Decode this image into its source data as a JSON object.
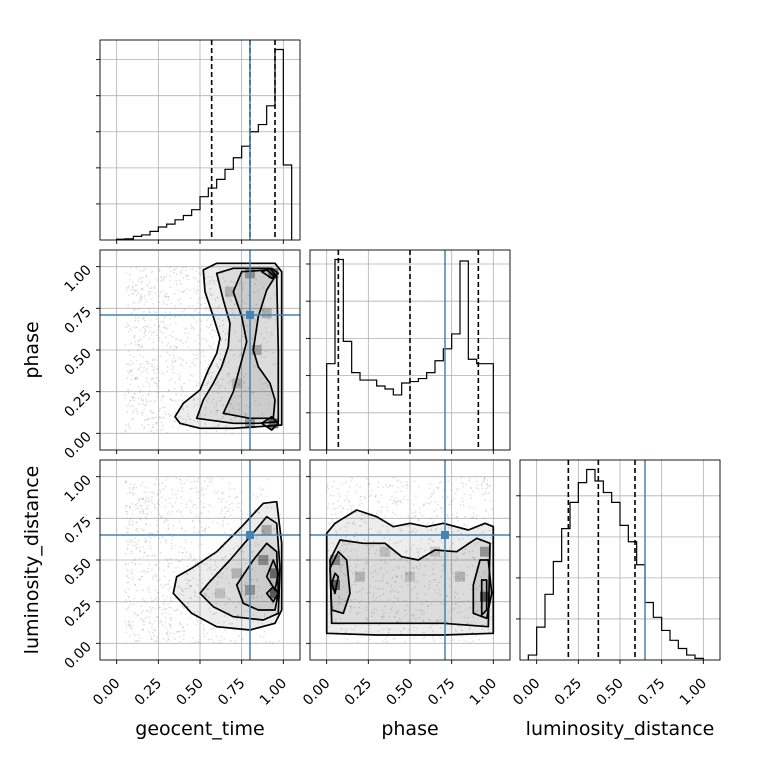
{
  "chart_data": {
    "type": "corner",
    "parameters": [
      "geocent_time",
      "phase",
      "luminosity_distance"
    ],
    "tick_values": [
      0.0,
      0.25,
      0.5,
      0.75,
      1.0
    ],
    "tick_labels": [
      "0.00",
      "0.25",
      "0.50",
      "0.75",
      "1.00"
    ],
    "axis_range": [
      -0.1,
      1.1
    ],
    "grid": true,
    "truth_color": "#4682b4",
    "truths": {
      "geocent_time": 0.8,
      "phase": 0.71,
      "luminosity_distance": 0.65
    },
    "histograms": [
      {
        "parameter": "geocent_time",
        "bin_edges": [
          0.0,
          0.05,
          0.1,
          0.15,
          0.2,
          0.25,
          0.3,
          0.35,
          0.4,
          0.45,
          0.5,
          0.55,
          0.6,
          0.65,
          0.7,
          0.75,
          0.8,
          0.85,
          0.9,
          0.95,
          1.0,
          1.05
        ],
        "counts": [
          0.5,
          0.8,
          2.5,
          3.5,
          6,
          9,
          11,
          14,
          17,
          21,
          30,
          36,
          42,
          49,
          57,
          65,
          75,
          80,
          93,
          132,
          52
        ],
        "quantiles": [
          0.57,
          0.8,
          0.95
        ]
      },
      {
        "parameter": "phase",
        "bin_edges": [
          0.0,
          0.05,
          0.1,
          0.15,
          0.2,
          0.25,
          0.3,
          0.35,
          0.4,
          0.45,
          0.5,
          0.55,
          0.6,
          0.65,
          0.7,
          0.75,
          0.8,
          0.85,
          0.9,
          0.95,
          1.0
        ],
        "counts": [
          58,
          128,
          73,
          52,
          47,
          47,
          43,
          41,
          37,
          45,
          46,
          48,
          52,
          60,
          68,
          78,
          127,
          61,
          58,
          58
        ],
        "quantiles": [
          0.07,
          0.5,
          0.91
        ]
      },
      {
        "parameter": "luminosity_distance",
        "bin_edges": [
          -0.05,
          0.0,
          0.05,
          0.1,
          0.15,
          0.2,
          0.25,
          0.3,
          0.35,
          0.4,
          0.45,
          0.5,
          0.55,
          0.6,
          0.65,
          0.7,
          0.75,
          0.8,
          0.85,
          0.9,
          0.95,
          1.0
        ],
        "counts": [
          3,
          20,
          40,
          60,
          80,
          96,
          108,
          116,
          109,
          102,
          96,
          82,
          72,
          58,
          35,
          26,
          18,
          12,
          7,
          3,
          1
        ],
        "quantiles": [
          0.19,
          0.37,
          0.59
        ]
      }
    ],
    "pairs": [
      {
        "x": "geocent_time",
        "y": "phase",
        "density_cells": [
          [
            0.94,
            0.96,
            0.9
          ],
          [
            0.8,
            0.96,
            0.55
          ],
          [
            0.94,
            0.06,
            0.95
          ],
          [
            0.8,
            0.06,
            0.55
          ],
          [
            0.84,
            0.5,
            0.45
          ],
          [
            0.9,
            0.72,
            0.4
          ],
          [
            0.72,
            0.3,
            0.3
          ],
          [
            0.68,
            0.85,
            0.35
          ]
        ],
        "contours": [
          {
            "level": 0.3,
            "points": [
              [
                0.38,
                0.06
              ],
              [
                0.5,
                0.03
              ],
              [
                0.7,
                0.03
              ],
              [
                0.85,
                0.04
              ],
              [
                0.99,
                0.05
              ],
              [
                0.99,
                0.5
              ],
              [
                0.99,
                0.97
              ],
              [
                0.95,
                1.02
              ],
              [
                0.6,
                1.02
              ],
              [
                0.52,
                0.98
              ],
              [
                0.53,
                0.85
              ],
              [
                0.58,
                0.7
              ],
              [
                0.62,
                0.57
              ],
              [
                0.6,
                0.48
              ],
              [
                0.55,
                0.38
              ],
              [
                0.5,
                0.26
              ],
              [
                0.4,
                0.18
              ],
              [
                0.35,
                0.1
              ]
            ]
          },
          {
            "level": 0.6,
            "points": [
              [
                0.48,
                0.09
              ],
              [
                0.7,
                0.06
              ],
              [
                0.85,
                0.06
              ],
              [
                0.97,
                0.07
              ],
              [
                0.97,
                0.5
              ],
              [
                0.96,
                0.94
              ],
              [
                0.92,
                0.99
              ],
              [
                0.7,
                0.99
              ],
              [
                0.6,
                0.96
              ],
              [
                0.64,
                0.8
              ],
              [
                0.68,
                0.66
              ],
              [
                0.67,
                0.52
              ],
              [
                0.63,
                0.4
              ],
              [
                0.58,
                0.3
              ],
              [
                0.52,
                0.2
              ]
            ]
          },
          {
            "level": 0.85,
            "points": [
              [
                0.64,
                0.12
              ],
              [
                0.8,
                0.09
              ],
              [
                0.94,
                0.09
              ],
              [
                0.95,
                0.2
              ],
              [
                0.92,
                0.3
              ],
              [
                0.85,
                0.4
              ],
              [
                0.82,
                0.5
              ],
              [
                0.85,
                0.7
              ],
              [
                0.9,
                0.86
              ],
              [
                0.95,
                0.94
              ],
              [
                0.9,
                0.98
              ],
              [
                0.75,
                0.97
              ],
              [
                0.7,
                0.85
              ],
              [
                0.75,
                0.7
              ],
              [
                0.78,
                0.55
              ],
              [
                0.74,
                0.4
              ],
              [
                0.7,
                0.25
              ]
            ]
          },
          {
            "level": 0.95,
            "points": [
              [
                0.87,
                0.97
              ],
              [
                0.93,
                0.93
              ],
              [
                0.97,
                0.96
              ],
              [
                0.93,
                0.99
              ]
            ]
          },
          {
            "level": 0.95,
            "points": [
              [
                0.87,
                0.06
              ],
              [
                0.93,
                0.02
              ],
              [
                0.97,
                0.06
              ],
              [
                0.93,
                0.1
              ]
            ]
          }
        ]
      },
      {
        "x": "geocent_time",
        "y": "luminosity_distance",
        "density_cells": [
          [
            0.95,
            0.3,
            0.95
          ],
          [
            0.95,
            0.42,
            0.85
          ],
          [
            0.88,
            0.5,
            0.6
          ],
          [
            0.8,
            0.32,
            0.5
          ],
          [
            0.72,
            0.42,
            0.35
          ],
          [
            0.9,
            0.68,
            0.45
          ],
          [
            0.62,
            0.3,
            0.25
          ]
        ],
        "contours": [
          {
            "level": 0.3,
            "points": [
              [
                0.45,
                0.45
              ],
              [
                0.6,
                0.55
              ],
              [
                0.75,
                0.7
              ],
              [
                0.88,
                0.84
              ],
              [
                0.96,
                0.85
              ],
              [
                0.99,
                0.6
              ],
              [
                0.99,
                0.2
              ],
              [
                0.95,
                0.12
              ],
              [
                0.8,
                0.08
              ],
              [
                0.6,
                0.1
              ],
              [
                0.45,
                0.18
              ],
              [
                0.34,
                0.3
              ],
              [
                0.36,
                0.4
              ]
            ]
          },
          {
            "level": 0.6,
            "points": [
              [
                0.55,
                0.36
              ],
              [
                0.68,
                0.5
              ],
              [
                0.8,
                0.64
              ],
              [
                0.9,
                0.76
              ],
              [
                0.96,
                0.72
              ],
              [
                0.98,
                0.45
              ],
              [
                0.97,
                0.18
              ],
              [
                0.88,
                0.14
              ],
              [
                0.7,
                0.16
              ],
              [
                0.58,
                0.22
              ],
              [
                0.5,
                0.3
              ]
            ]
          },
          {
            "level": 0.85,
            "points": [
              [
                0.72,
                0.35
              ],
              [
                0.82,
                0.5
              ],
              [
                0.9,
                0.6
              ],
              [
                0.96,
                0.55
              ],
              [
                0.97,
                0.3
              ],
              [
                0.95,
                0.2
              ],
              [
                0.85,
                0.2
              ],
              [
                0.76,
                0.24
              ]
            ]
          },
          {
            "level": 0.95,
            "points": [
              [
                0.9,
                0.4
              ],
              [
                0.94,
                0.5
              ],
              [
                0.97,
                0.42
              ],
              [
                0.95,
                0.32
              ]
            ]
          },
          {
            "level": 0.95,
            "points": [
              [
                0.9,
                0.3
              ],
              [
                0.94,
                0.34
              ],
              [
                0.97,
                0.3
              ],
              [
                0.94,
                0.25
              ]
            ]
          }
        ]
      },
      {
        "x": "phase",
        "y": "luminosity_distance",
        "density_cells": [
          [
            0.05,
            0.35,
            0.95
          ],
          [
            0.95,
            0.28,
            0.95
          ],
          [
            0.05,
            0.5,
            0.6
          ],
          [
            0.95,
            0.55,
            0.6
          ],
          [
            0.2,
            0.4,
            0.35
          ],
          [
            0.8,
            0.4,
            0.35
          ],
          [
            0.5,
            0.4,
            0.25
          ],
          [
            0.35,
            0.55,
            0.25
          ],
          [
            0.65,
            0.55,
            0.25
          ]
        ],
        "contours": [
          {
            "level": 0.3,
            "points": [
              [
                0.0,
                0.06
              ],
              [
                0.3,
                0.05
              ],
              [
                0.7,
                0.05
              ],
              [
                1.0,
                0.06
              ],
              [
                1.0,
                0.7
              ],
              [
                0.95,
                0.72
              ],
              [
                0.85,
                0.68
              ],
              [
                0.7,
                0.72
              ],
              [
                0.6,
                0.7
              ],
              [
                0.5,
                0.72
              ],
              [
                0.4,
                0.7
              ],
              [
                0.3,
                0.76
              ],
              [
                0.18,
                0.8
              ],
              [
                0.05,
                0.72
              ],
              [
                0.0,
                0.66
              ]
            ]
          },
          {
            "level": 0.6,
            "points": [
              [
                0.03,
                0.12
              ],
              [
                0.3,
                0.12
              ],
              [
                0.7,
                0.12
              ],
              [
                0.97,
                0.1
              ],
              [
                0.98,
                0.6
              ],
              [
                0.9,
                0.63
              ],
              [
                0.78,
                0.55
              ],
              [
                0.65,
                0.56
              ],
              [
                0.55,
                0.5
              ],
              [
                0.45,
                0.52
              ],
              [
                0.35,
                0.6
              ],
              [
                0.22,
                0.6
              ],
              [
                0.08,
                0.62
              ],
              [
                0.02,
                0.5
              ]
            ]
          },
          {
            "level": 0.85,
            "points": [
              [
                0.03,
                0.2
              ],
              [
                0.1,
                0.18
              ],
              [
                0.14,
                0.3
              ],
              [
                0.12,
                0.5
              ],
              [
                0.07,
                0.55
              ],
              [
                0.02,
                0.45
              ]
            ]
          },
          {
            "level": 0.85,
            "points": [
              [
                0.88,
                0.18
              ],
              [
                0.96,
                0.15
              ],
              [
                0.99,
                0.3
              ],
              [
                0.97,
                0.5
              ],
              [
                0.92,
                0.5
              ],
              [
                0.88,
                0.35
              ]
            ]
          },
          {
            "level": 0.95,
            "points": [
              [
                0.05,
                0.3
              ],
              [
                0.07,
                0.4
              ],
              [
                0.05,
                0.42
              ],
              [
                0.03,
                0.36
              ]
            ]
          },
          {
            "level": 0.95,
            "points": [
              [
                0.93,
                0.17
              ],
              [
                0.96,
                0.2
              ],
              [
                0.96,
                0.38
              ],
              [
                0.93,
                0.38
              ]
            ]
          }
        ]
      }
    ]
  }
}
